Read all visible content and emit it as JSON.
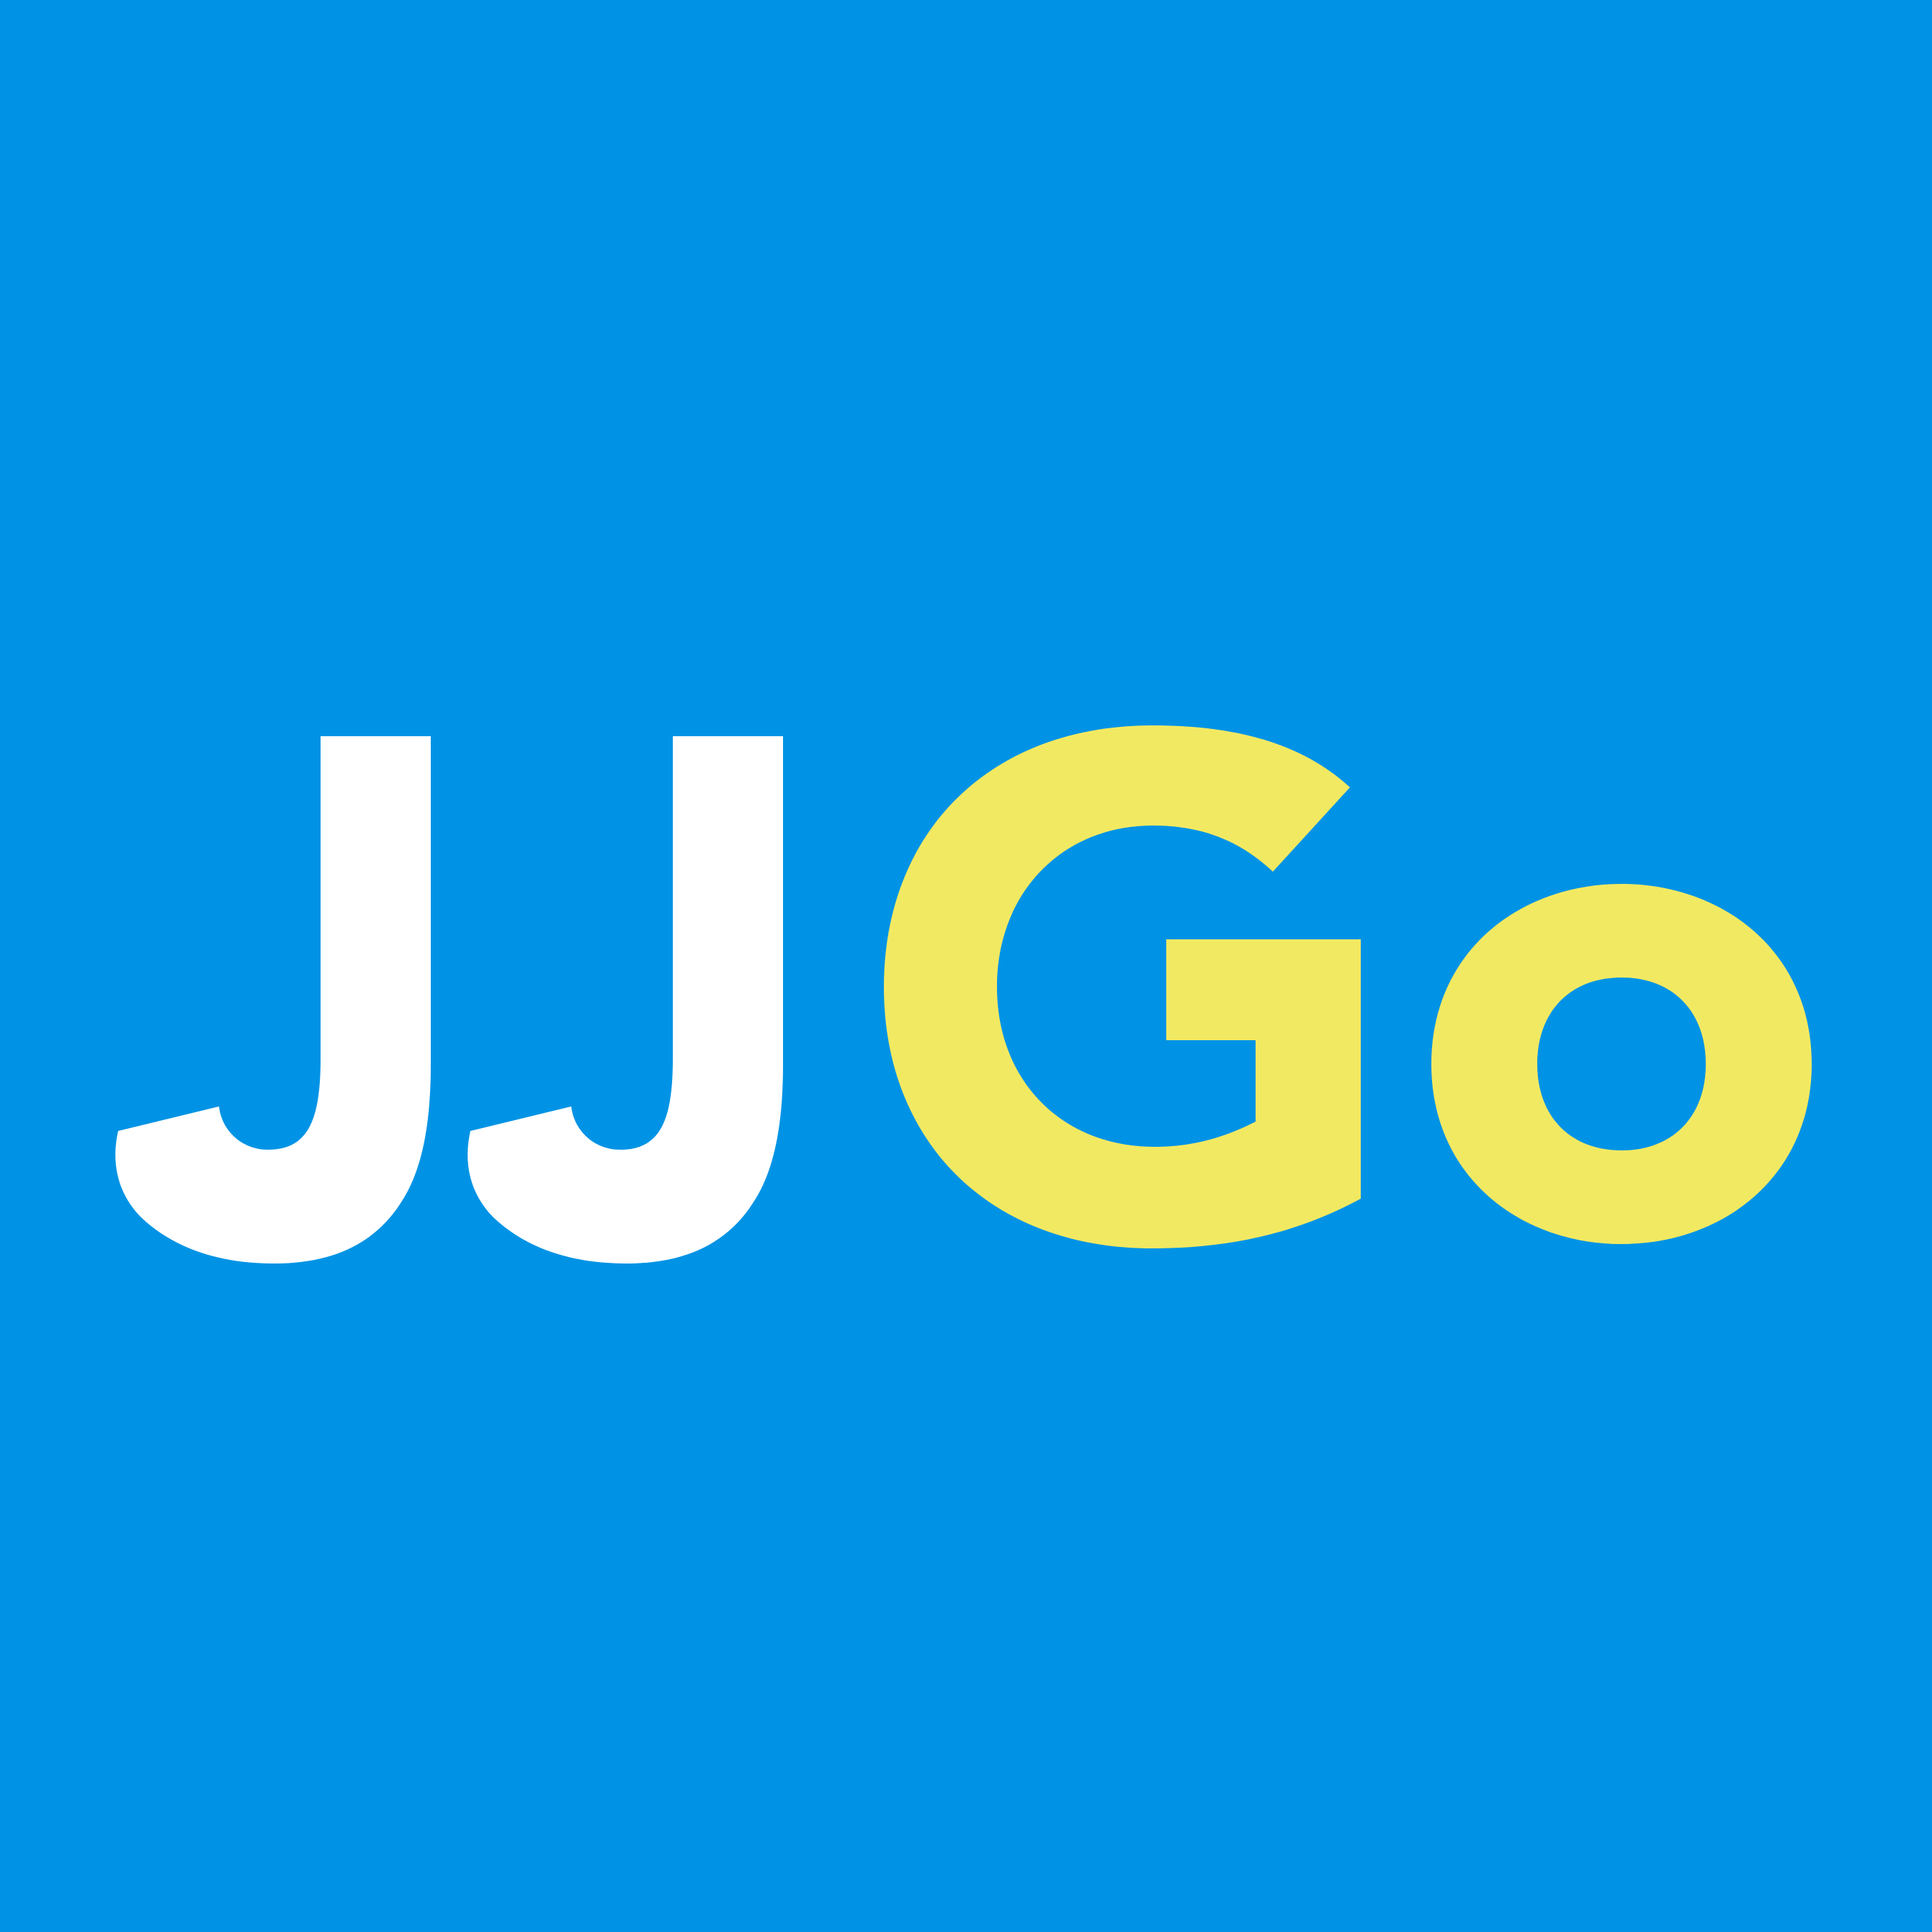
{
  "logo": {
    "text_white": "JJ",
    "text_yellow": "Go",
    "colors": {
      "background": "#0093E5",
      "white_part": "#FFFFFF",
      "yellow_part": "#F2E962"
    }
  }
}
